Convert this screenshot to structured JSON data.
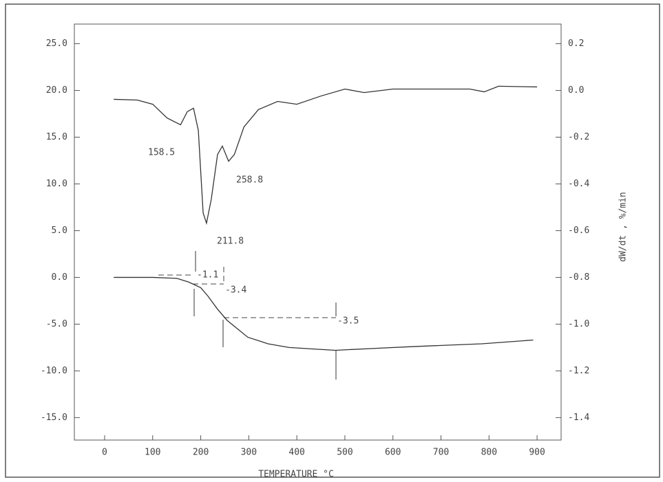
{
  "chart_data": {
    "type": "line",
    "xlabel": "TEMPERATURE  °C",
    "y2label": "dW/dt , %/min",
    "xlim": [
      -63,
      950
    ],
    "xticks": [
      0,
      100,
      200,
      300,
      400,
      500,
      600,
      700,
      800,
      900
    ],
    "ylim": [
      -17.4,
      27.1
    ],
    "yticks": [
      {
        "value": -15,
        "label": "-15.0"
      },
      {
        "value": -10,
        "label": "-10.0"
      },
      {
        "value": -5,
        "label": "-5.0"
      },
      {
        "value": 0,
        "label": "0.0"
      },
      {
        "value": 5,
        "label": "5.0"
      },
      {
        "value": 10,
        "label": "10.0"
      },
      {
        "value": 15,
        "label": "15.0"
      },
      {
        "value": 20,
        "label": "20.0"
      },
      {
        "value": 25,
        "label": "25.0"
      }
    ],
    "y2lim": [
      -1.496,
      0.284
    ],
    "y2ticks": [
      0.2,
      {
        "value": 0,
        "label": "0.0"
      },
      -0.2,
      -0.4,
      -0.6,
      -0.8,
      {
        "value": -1,
        "label": "-1.0"
      },
      -1.2,
      -1.4
    ],
    "series": [
      {
        "color": "#333333",
        "x": [
          19,
          100,
          150,
          175,
          200,
          215,
          235,
          255,
          298,
          340,
          384,
          480,
          560,
          642,
          785,
          892
        ],
        "values": [
          0,
          0,
          -0.1,
          -0.5,
          -1.1,
          -2.0,
          -3.4,
          -4.6,
          -6.4,
          -7.1,
          -7.5,
          -7.8,
          -7.6,
          -7.4,
          -7.1,
          -6.7
        ]
      },
      {
        "color": "#333333",
        "axis": "y2",
        "x": [
          19,
          68,
          100,
          130,
          158,
          172,
          185,
          195,
          205,
          212,
          222,
          235,
          245,
          258,
          270,
          290,
          320,
          360,
          400,
          450,
          500,
          540,
          600,
          700,
          760,
          790,
          820,
          900
        ],
        "values": [
          -0.038,
          -0.041,
          -0.059,
          -0.118,
          -0.147,
          -0.091,
          -0.076,
          -0.171,
          -0.524,
          -0.568,
          -0.465,
          -0.274,
          -0.238,
          -0.303,
          -0.274,
          -0.156,
          -0.082,
          -0.047,
          -0.059,
          -0.024,
          0.006,
          -0.009,
          0.006,
          0.006,
          0.006,
          -0.006,
          0.018,
          0.015
        ]
      }
    ],
    "annotations": [
      "158.5",
      "258.8",
      "211.8",
      "-1.1",
      "-3.4",
      "-3.5"
    ]
  }
}
